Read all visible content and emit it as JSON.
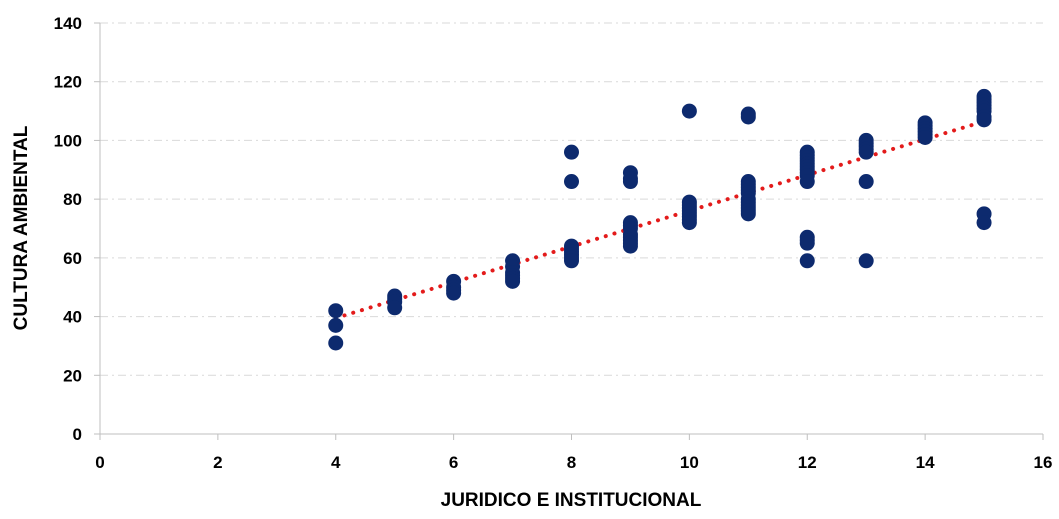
{
  "chart_data": {
    "type": "scatter",
    "title": "",
    "xlabel": "JURIDICO E INSTITUCIONAL",
    "ylabel": "CULTURA AMBIENTAL",
    "xlim": [
      0,
      16
    ],
    "ylim": [
      0,
      140
    ],
    "xticks": [
      0,
      2,
      4,
      6,
      8,
      10,
      12,
      14,
      16
    ],
    "yticks": [
      0,
      20,
      40,
      60,
      80,
      100,
      120,
      140
    ],
    "grid": "horizontal dashed",
    "legend": "none",
    "colors": {
      "points": "#0d2a6e",
      "trendline": "#e31b1b",
      "grid": "#d9d9d9",
      "axis": "#bfbfbf"
    },
    "series": [
      {
        "points": [
          [
            4,
            42
          ],
          [
            4,
            37
          ],
          [
            4,
            31
          ],
          [
            5,
            47
          ],
          [
            5,
            46
          ],
          [
            5,
            45
          ],
          [
            5,
            43
          ],
          [
            6,
            52
          ],
          [
            6,
            50
          ],
          [
            6,
            49
          ],
          [
            6,
            48
          ],
          [
            7,
            59
          ],
          [
            7,
            57
          ],
          [
            7,
            55
          ],
          [
            7,
            54
          ],
          [
            7,
            53
          ],
          [
            7,
            52
          ],
          [
            8,
            96
          ],
          [
            8,
            86
          ],
          [
            8,
            64
          ],
          [
            8,
            63
          ],
          [
            8,
            62
          ],
          [
            8,
            61
          ],
          [
            8,
            60
          ],
          [
            8,
            59
          ],
          [
            9,
            89
          ],
          [
            9,
            87
          ],
          [
            9,
            86
          ],
          [
            9,
            72
          ],
          [
            9,
            71
          ],
          [
            9,
            70
          ],
          [
            9,
            68
          ],
          [
            9,
            67
          ],
          [
            9,
            66
          ],
          [
            9,
            65
          ],
          [
            9,
            64
          ],
          [
            10,
            110
          ],
          [
            10,
            79
          ],
          [
            10,
            78
          ],
          [
            10,
            77
          ],
          [
            10,
            76
          ],
          [
            10,
            75
          ],
          [
            10,
            74
          ],
          [
            10,
            73
          ],
          [
            10,
            72
          ],
          [
            11,
            109
          ],
          [
            11,
            108
          ],
          [
            11,
            86
          ],
          [
            11,
            85
          ],
          [
            11,
            84
          ],
          [
            11,
            83
          ],
          [
            11,
            82
          ],
          [
            11,
            80
          ],
          [
            11,
            79
          ],
          [
            11,
            78
          ],
          [
            11,
            77
          ],
          [
            11,
            76
          ],
          [
            11,
            75
          ],
          [
            12,
            96
          ],
          [
            12,
            95
          ],
          [
            12,
            94
          ],
          [
            12,
            93
          ],
          [
            12,
            92
          ],
          [
            12,
            91
          ],
          [
            12,
            90
          ],
          [
            12,
            89
          ],
          [
            12,
            88
          ],
          [
            12,
            86
          ],
          [
            12,
            67
          ],
          [
            12,
            66
          ],
          [
            12,
            65
          ],
          [
            12,
            59
          ],
          [
            13,
            100
          ],
          [
            13,
            99
          ],
          [
            13,
            98
          ],
          [
            13,
            97
          ],
          [
            13,
            96
          ],
          [
            13,
            86
          ],
          [
            13,
            59
          ],
          [
            14,
            106
          ],
          [
            14,
            105
          ],
          [
            14,
            104
          ],
          [
            14,
            103
          ],
          [
            14,
            102
          ],
          [
            14,
            101
          ],
          [
            15,
            115
          ],
          [
            15,
            114
          ],
          [
            15,
            113
          ],
          [
            15,
            112
          ],
          [
            15,
            111
          ],
          [
            15,
            110
          ],
          [
            15,
            108
          ],
          [
            15,
            107
          ],
          [
            15,
            75
          ],
          [
            15,
            72
          ]
        ]
      }
    ],
    "trendline": {
      "type": "linear",
      "style": "dotted",
      "x": [
        4,
        15
      ],
      "y": [
        39.5,
        106.5
      ]
    }
  }
}
